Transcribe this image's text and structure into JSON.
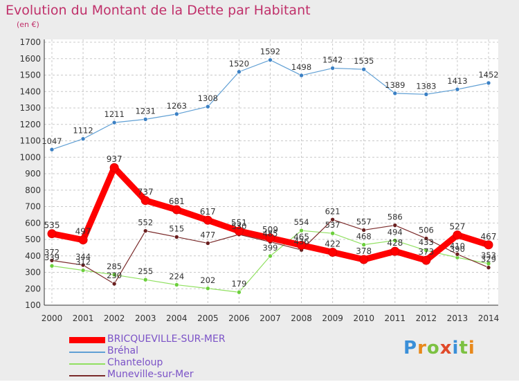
{
  "chart_data": {
    "type": "line",
    "title": "Evolution du Montant de la Dette par Habitant",
    "subtitle": "(en €)",
    "x": [
      "2000",
      "2001",
      "2002",
      "2003",
      "2004",
      "2005",
      "2006",
      "2007",
      "2008",
      "2009",
      "2010",
      "2011",
      "2012",
      "2013",
      "2014"
    ],
    "ylim": [
      100,
      1700
    ],
    "yticks": [
      100,
      200,
      300,
      400,
      500,
      600,
      700,
      800,
      900,
      1000,
      1100,
      1200,
      1300,
      1400,
      1500,
      1600,
      1700
    ],
    "grid": true,
    "legend_position": "bottom-left",
    "series": [
      {
        "name": "BRICQUEVILLE-SUR-MER",
        "color": "#ff0000",
        "values": [
          535,
          497,
          937,
          737,
          681,
          617,
          551,
          509,
          465,
          422,
          378,
          428,
          373,
          527,
          467
        ]
      },
      {
        "name": "Bréhal",
        "color": "#5f9fd4",
        "values": [
          1047,
          1112,
          1211,
          1231,
          1263,
          1308,
          1520,
          1592,
          1498,
          1542,
          1535,
          1389,
          1383,
          1413,
          1452
        ]
      },
      {
        "name": "Chanteloup",
        "color": "#90e060",
        "values": [
          339,
          312,
          285,
          255,
          224,
          202,
          179,
          399,
          554,
          537,
          468,
          494,
          433,
          390,
          353
        ]
      },
      {
        "name": "Muneville-sur-Mer",
        "color": "#7a2a2a",
        "values": [
          372,
          344,
          230,
          552,
          515,
          477,
          530,
          485,
          436,
          621,
          557,
          586,
          506,
          410,
          329
        ]
      }
    ]
  },
  "legend": {
    "items": [
      {
        "label": "BRICQUEVILLE-SUR-MER"
      },
      {
        "label": "Bréhal"
      },
      {
        "label": "Chanteloup"
      },
      {
        "label": "Muneville-sur-Mer"
      }
    ]
  },
  "logo": {
    "text": "Proxiti"
  }
}
